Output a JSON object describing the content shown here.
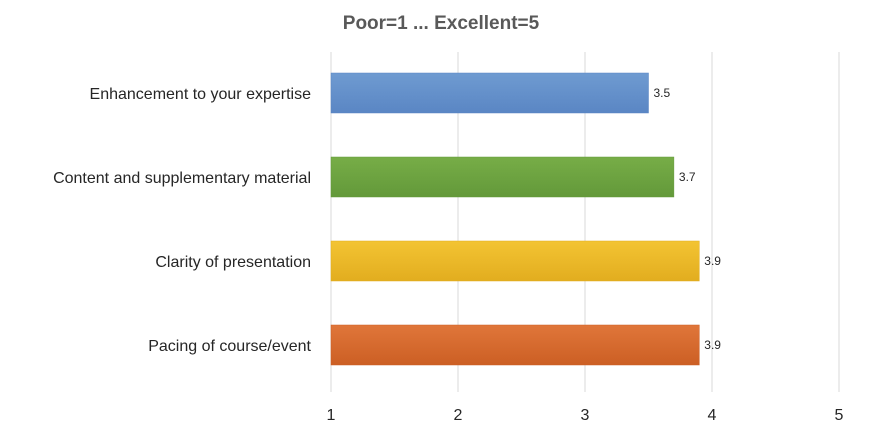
{
  "chart_data": {
    "type": "bar",
    "orientation": "horizontal",
    "title": "Poor=1 ... Excellent=5",
    "xlabel": "",
    "ylabel": "",
    "xlim": [
      1,
      5
    ],
    "x_ticks": [
      "1",
      "2",
      "3",
      "4",
      "5"
    ],
    "grid": true,
    "legend": "none",
    "categories": [
      "Enhancement to your expertise",
      "Content and supplementary material",
      "Clarity of presentation",
      "Pacing of course/event"
    ],
    "values": [
      3.5,
      3.7,
      3.9,
      3.9
    ],
    "value_labels": [
      "3.5",
      "3.7",
      "3.9",
      "3.9"
    ],
    "colors": [
      "#6f9bd1",
      "#77ad47",
      "#f3c433",
      "#e0763a"
    ],
    "gradient_ends": [
      "#5a86c4",
      "#63993a",
      "#e2ad1f",
      "#cc5f24"
    ]
  }
}
